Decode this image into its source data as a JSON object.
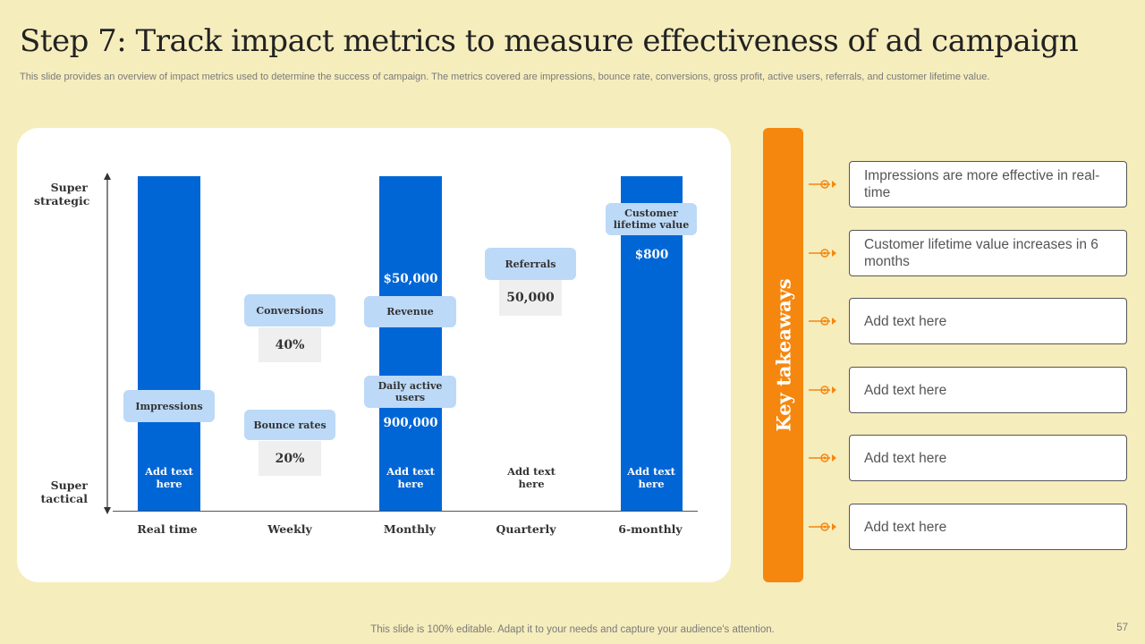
{
  "header": {
    "title": "Step 7: Track impact metrics to measure effectiveness of ad campaign",
    "subtitle": "This slide provides an overview of impact metrics used to determine the success of campaign. The metrics covered are impressions, bounce rate, conversions, gross profit, active users, referrals, and customer lifetime value."
  },
  "chart": {
    "y_top_label": "Super strategic",
    "y_bottom_label": "Super tactical",
    "columns": [
      {
        "label": "Real time",
        "bar_text": "Add text here",
        "has_bar": true
      },
      {
        "label": "Weekly",
        "has_bar": false
      },
      {
        "label": "Monthly",
        "bar_text": "Add text here",
        "has_bar": true
      },
      {
        "label": "Quarterly",
        "bar_text": "Add text here",
        "has_bar": false
      },
      {
        "label": "6-monthly",
        "bar_text": "Add text here",
        "has_bar": true
      }
    ],
    "metrics": {
      "impressions": {
        "label": "Impressions"
      },
      "conversions": {
        "label": "Conversions",
        "value": "40%"
      },
      "bounce_rates": {
        "label": "Bounce rates",
        "value": "20%"
      },
      "revenue": {
        "label": "Revenue",
        "value": "$50,000"
      },
      "daily_active_users": {
        "label": "Daily active users",
        "value": "900,000"
      },
      "referrals": {
        "label": "Referrals",
        "value": "50,000"
      },
      "customer_lifetime_value": {
        "label": "Customer lifetime value",
        "value": "$800"
      }
    }
  },
  "takeaways": {
    "title": "Key takeaways",
    "items": [
      "Impressions are more effective in real-time",
      "Customer lifetime value increases in 6 months",
      "Add text here",
      "Add text here",
      "Add text here",
      "Add text here"
    ]
  },
  "footer": {
    "note": "This slide is 100% editable. Adapt it to your needs and capture your audience's attention.",
    "page_number": "57"
  },
  "colors": {
    "background": "#f6edbd",
    "bar_blue": "#0066d6",
    "pill_blue": "#bcd9f7",
    "accent_orange": "#f5870f"
  }
}
